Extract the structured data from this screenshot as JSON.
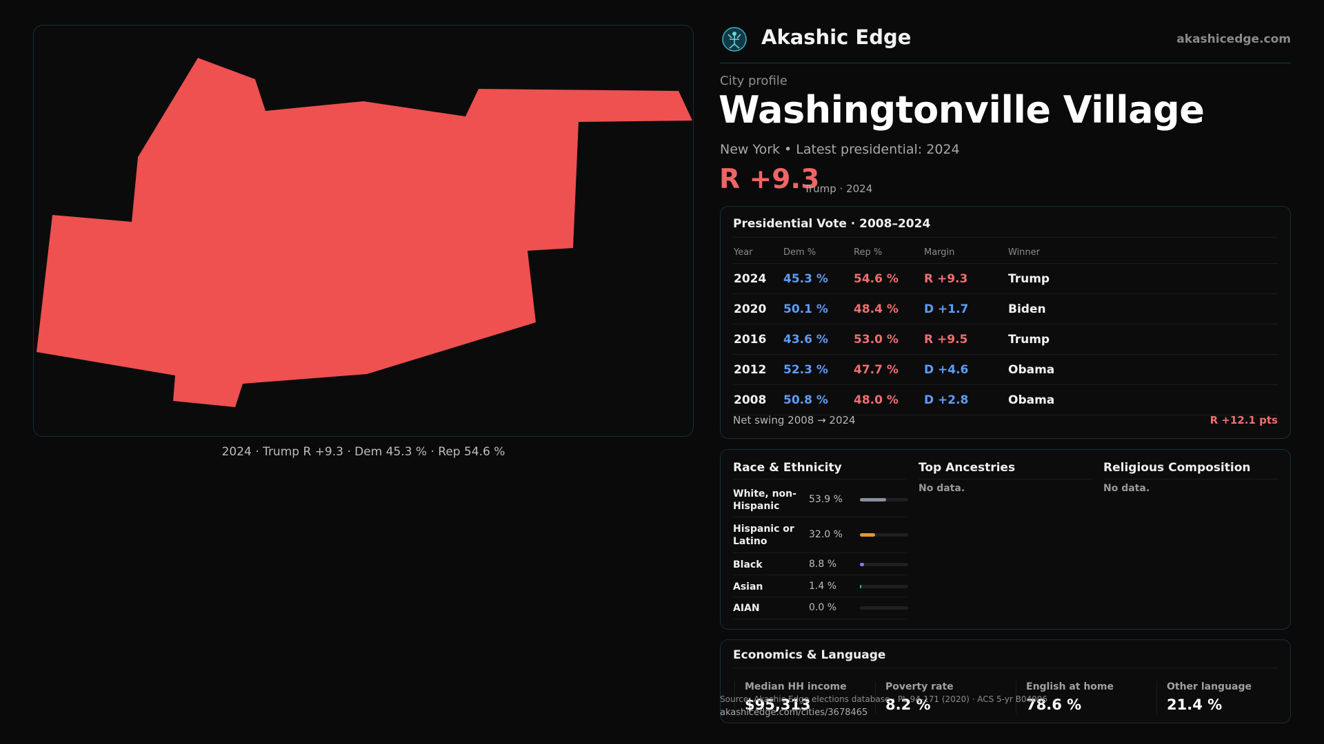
{
  "map": {
    "caption": "2024 · Trump R +9.3 · Dem 45.3 % · Rep 54.6 %",
    "fill_color": "#ef5050"
  },
  "header": {
    "brand_name": "Akashic Edge",
    "brand_url": "akashicedge.com",
    "kicker": "City profile",
    "city_name": "Washingtonville Village",
    "subtitle": "New York  • Latest presidential: 2024",
    "margin": "R +9.3",
    "margin_note": "Trump · 2024"
  },
  "presidential": {
    "title": "Presidential Vote · 2008–2024",
    "columns": [
      "Year",
      "Dem %",
      "Rep %",
      "Margin",
      "Winner"
    ],
    "rows": [
      {
        "year": "2024",
        "dem": "45.3 %",
        "rep": "54.6 %",
        "margin": "R +9.3",
        "party": "R",
        "winner": "Trump"
      },
      {
        "year": "2020",
        "dem": "50.1 %",
        "rep": "48.4 %",
        "margin": "D +1.7",
        "party": "D",
        "winner": "Biden"
      },
      {
        "year": "2016",
        "dem": "43.6 %",
        "rep": "53.0 %",
        "margin": "R +9.5",
        "party": "R",
        "winner": "Trump"
      },
      {
        "year": "2012",
        "dem": "52.3 %",
        "rep": "47.7 %",
        "margin": "D +4.6",
        "party": "D",
        "winner": "Obama"
      },
      {
        "year": "2008",
        "dem": "50.8 %",
        "rep": "48.0 %",
        "margin": "D +2.8",
        "party": "D",
        "winner": "Obama"
      }
    ],
    "swing_label": "Net swing 2008 → 2024",
    "swing_value": "R +12.1 pts"
  },
  "demographics": {
    "ethnicity_title": "Race & Ethnicity",
    "ethnicity": [
      {
        "name": "White, non-Hispanic",
        "pct": "53.9 %",
        "share": 0.539,
        "color": "#8a8f9c"
      },
      {
        "name": "Hispanic or Latino",
        "pct": "32.0 %",
        "share": 0.32,
        "color": "#e39a2a"
      },
      {
        "name": "Black",
        "pct": "8.8 %",
        "share": 0.088,
        "color": "#8a7cf0"
      },
      {
        "name": "Asian",
        "pct": "1.4 %",
        "share": 0.014,
        "color": "#2fb6a0"
      },
      {
        "name": "AIAN",
        "pct": "0.0 %",
        "share": 0.0,
        "color": "#c0c0c0"
      }
    ],
    "ancestries_title": "Top Ancestries",
    "ancestries_empty": "No data.",
    "religion_title": "Religious Composition",
    "religion_empty": "No data."
  },
  "economics": {
    "title": "Economics & Language",
    "stats": [
      {
        "label": "Median HH income",
        "value": "$95,313"
      },
      {
        "label": "Poverty rate",
        "value": "8.2 %"
      },
      {
        "label": "English at home",
        "value": "78.6 %"
      },
      {
        "label": "Other language",
        "value": "21.4 %"
      }
    ]
  },
  "footer": {
    "source": "Source: Akashic Edge elections database · PL 94-171 (2020) · ACS 5-yr B04006",
    "url": "akashicedge.com/cities/3678465"
  },
  "colors": {
    "republican": "#ef6f6f",
    "democrat": "#5f9cf5",
    "panel_border": "#14303a",
    "background": "#0a0a0b"
  }
}
